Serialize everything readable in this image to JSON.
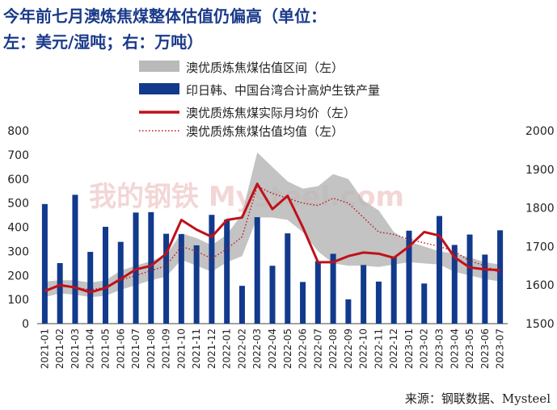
{
  "title_line1": "今年前七月澳炼焦煤整体估值仍偏高（单位：",
  "title_line2": "左：美元/湿吨；右：万吨）",
  "source": "来源：钢联数据、Mysteel",
  "watermark": "我的钢铁 Mysteel.com",
  "colors": {
    "band": "#b9b9b9",
    "bars": "#123a8c",
    "actual": "#c0101a",
    "average": "#c0101a",
    "title": "#1a3a8a"
  },
  "chart_data": {
    "type": "bar",
    "categories": [
      "2021-01",
      "2021-02",
      "2021-03",
      "2021-04",
      "2021-05",
      "2021-06",
      "2021-07",
      "2021-08",
      "2021-09",
      "2021-10",
      "2021-11",
      "2021-12",
      "2022-01",
      "2022-02",
      "2022-03",
      "2022-04",
      "2022-05",
      "2022-06",
      "2022-07",
      "2022-08",
      "2022-09",
      "2022-10",
      "2022-11",
      "2022-12",
      "2023-01",
      "2023-02",
      "2023-03",
      "2023-04",
      "2023-05",
      "2023-06",
      "2023-07"
    ],
    "left_axis": {
      "min": 0,
      "max": 800,
      "ticks": [
        "0",
        "100",
        "200",
        "300",
        "400",
        "500",
        "600",
        "700",
        "800"
      ]
    },
    "right_axis": {
      "min": 1500,
      "max": 2000,
      "ticks": [
        "1500",
        "1600",
        "1700",
        "1800",
        "1900",
        "2000"
      ]
    },
    "legend": [
      {
        "label": "澳优质炼焦煤估值区间（左）",
        "kind": "band"
      },
      {
        "label": "印日韩、中国台湾合计高炉生铁产量",
        "kind": "bar"
      },
      {
        "label": "澳优质炼焦煤实际月均价（左）",
        "kind": "line"
      },
      {
        "label": "澳优质炼焦煤估值均值（左）",
        "kind": "dotted"
      }
    ],
    "series": [
      {
        "name": "澳优质炼焦煤估值区间（左）",
        "axis": "left",
        "kind": "band",
        "low": [
          110,
          125,
          120,
          110,
          115,
          140,
          160,
          180,
          195,
          265,
          240,
          215,
          255,
          280,
          440,
          440,
          430,
          380,
          300,
          250,
          240,
          240,
          235,
          245,
          255,
          250,
          245,
          215,
          200,
          185,
          175
        ],
        "high": [
          175,
          180,
          180,
          170,
          180,
          220,
          240,
          260,
          285,
          375,
          355,
          325,
          370,
          455,
          710,
          650,
          590,
          560,
          570,
          620,
          600,
          510,
          470,
          380,
          340,
          320,
          300,
          290,
          275,
          255,
          245
        ]
      },
      {
        "name": "印日韩、中国台湾合计高炉生铁产量",
        "axis": "right",
        "kind": "bar",
        "values": [
          1810,
          1657,
          1834,
          1686,
          1751,
          1712,
          1788,
          1789,
          1733,
          1732,
          1703,
          1782,
          1770,
          1598,
          1776,
          1650,
          1734,
          1608,
          1662,
          1681,
          1563,
          1652,
          1609,
          1673,
          1741,
          1604,
          1779,
          1704,
          1731,
          1679,
          1742
        ]
      },
      {
        "name": "澳优质炼焦煤实际月均价（左）",
        "axis": "left",
        "kind": "line",
        "values": [
          135,
          160,
          150,
          130,
          148,
          185,
          225,
          240,
          290,
          430,
          390,
          360,
          430,
          440,
          580,
          475,
          530,
          400,
          255,
          255,
          280,
          295,
          290,
          273,
          320,
          380,
          365,
          275,
          233,
          225,
          222
        ]
      },
      {
        "name": "澳优质炼焦煤估值均值（左）",
        "axis": "left",
        "kind": "dotted",
        "values": [
          140,
          155,
          150,
          140,
          150,
          180,
          200,
          220,
          240,
          320,
          300,
          270,
          310,
          360,
          570,
          540,
          520,
          500,
          490,
          520,
          500,
          440,
          380,
          370,
          350,
          335,
          320,
          300,
          260,
          240,
          210
        ]
      }
    ]
  }
}
